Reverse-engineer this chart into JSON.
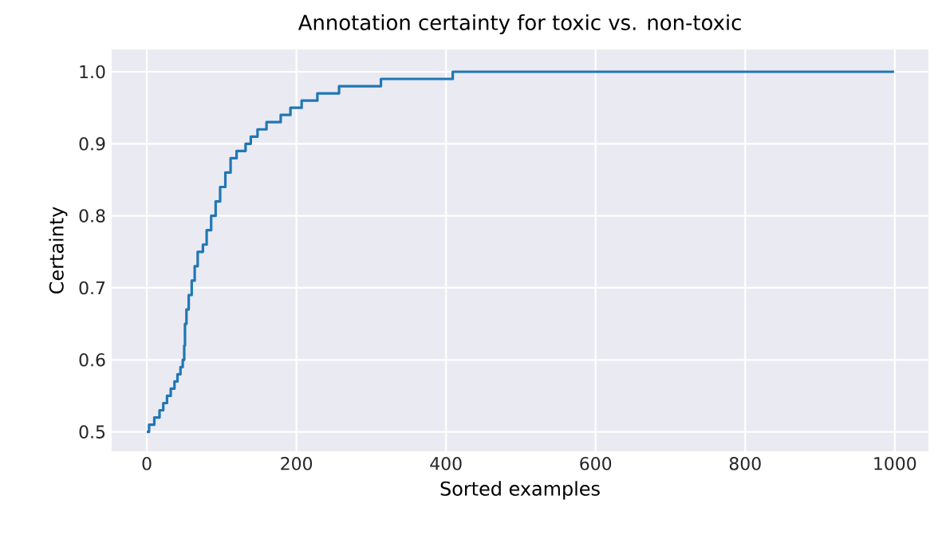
{
  "chart_data": {
    "type": "step",
    "title": "Annotation certainty for toxic vs. non-toxic",
    "xlabel": "Sorted examples",
    "ylabel": "Certainty",
    "x": [
      0,
      3,
      10,
      17,
      22,
      27,
      32,
      37,
      41,
      45,
      48,
      50,
      51,
      53,
      56,
      60,
      64,
      68,
      75,
      80,
      86,
      92,
      98,
      105,
      112,
      120,
      132,
      139,
      148,
      160,
      179,
      192,
      207,
      228,
      257,
      313,
      409,
      999
    ],
    "series": [
      {
        "color": "#2077b4",
        "values": [
          0.5,
          0.51,
          0.52,
          0.53,
          0.54,
          0.55,
          0.56,
          0.57,
          0.58,
          0.59,
          0.6,
          0.62,
          0.65,
          0.67,
          0.69,
          0.71,
          0.73,
          0.75,
          0.76,
          0.78,
          0.8,
          0.82,
          0.84,
          0.86,
          0.88,
          0.89,
          0.9,
          0.91,
          0.92,
          0.93,
          0.94,
          0.95,
          0.96,
          0.97,
          0.98,
          0.99,
          1.0,
          1.0
        ]
      }
    ],
    "xlim": [
      -47,
      1045
    ],
    "ylim": [
      0.473,
      1.031
    ],
    "xticks": [
      0,
      200,
      400,
      600,
      800,
      1000
    ],
    "yticks": [
      {
        "value": 0.5,
        "label": "0.5"
      },
      {
        "value": 0.6,
        "label": "0.6"
      },
      {
        "value": 0.7,
        "label": "0.7"
      },
      {
        "value": 0.8,
        "label": "0.8"
      },
      {
        "value": 0.9,
        "label": "0.9"
      },
      {
        "value": 1.0,
        "label": "1.0"
      }
    ],
    "grid": true,
    "line_style": "solid"
  }
}
